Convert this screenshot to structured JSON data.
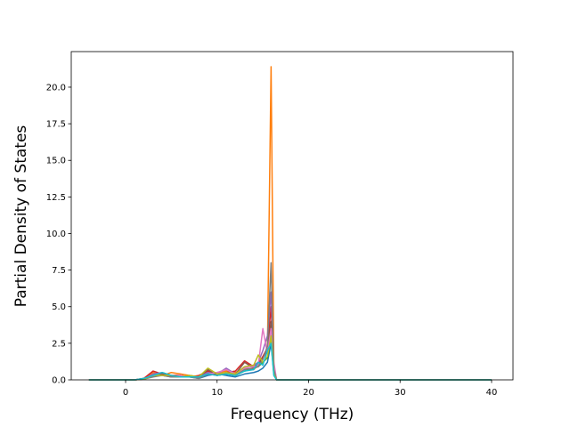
{
  "chart_data": {
    "type": "line",
    "xlabel": "Frequency (THz)",
    "ylabel": "Partial Density of States",
    "x": [
      -4,
      1,
      2,
      3,
      4,
      5,
      6,
      7,
      8,
      9,
      10,
      11,
      12,
      13,
      14,
      14.5,
      15,
      15.5,
      15.9,
      16.2,
      16.5,
      40
    ],
    "series": [
      {
        "color": "#1f77b4",
        "values": [
          0,
          0,
          0.1,
          0.4,
          0.3,
          0.2,
          0.3,
          0.2,
          0.1,
          0.3,
          0.4,
          0.3,
          0.2,
          0.4,
          0.5,
          0.6,
          0.8,
          1.2,
          2.5,
          0.5,
          0,
          0
        ]
      },
      {
        "color": "#ff7f0e",
        "values": [
          0,
          0,
          0.1,
          0.5,
          0.3,
          0.5,
          0.4,
          0.3,
          0.2,
          0.4,
          0.5,
          0.6,
          0.5,
          0.8,
          0.7,
          1,
          1.5,
          2,
          21.4,
          1,
          0,
          0
        ]
      },
      {
        "color": "#2ca02c",
        "values": [
          0,
          0,
          0.05,
          0.3,
          0.4,
          0.2,
          0.2,
          0.3,
          0.2,
          0.5,
          0.3,
          0.4,
          0.3,
          0.6,
          0.8,
          0.9,
          1.2,
          1.5,
          3,
          0.4,
          0,
          0
        ]
      },
      {
        "color": "#d62728",
        "values": [
          0,
          0,
          0.1,
          0.6,
          0.4,
          0.3,
          0.3,
          0.2,
          0.3,
          0.6,
          0.4,
          0.5,
          0.6,
          1.3,
          0.9,
          1.1,
          1.6,
          2.2,
          5,
          0.6,
          0,
          0
        ]
      },
      {
        "color": "#9467bd",
        "values": [
          0,
          0,
          0.05,
          0.4,
          0.5,
          0.3,
          0.2,
          0.2,
          0.2,
          0.5,
          0.4,
          0.8,
          0.4,
          0.9,
          1,
          1.2,
          2,
          3,
          6,
          0.8,
          0,
          0
        ]
      },
      {
        "color": "#8c564b",
        "values": [
          0,
          0,
          0.05,
          0.3,
          0.4,
          0.2,
          0.3,
          0.2,
          0.2,
          0.7,
          0.3,
          0.5,
          0.4,
          1.2,
          0.8,
          1,
          1.5,
          2,
          4,
          0.5,
          0,
          0
        ]
      },
      {
        "color": "#e377c2",
        "values": [
          0,
          0,
          0.05,
          0.3,
          0.3,
          0.2,
          0.3,
          0.2,
          0.2,
          0.4,
          0.5,
          0.7,
          0.4,
          0.8,
          0.9,
          1,
          3.5,
          1.8,
          3.5,
          1.2,
          0,
          0
        ]
      },
      {
        "color": "#7f7f7f",
        "values": [
          0,
          0,
          0.05,
          0.2,
          0.3,
          0.2,
          0.2,
          0.2,
          0.1,
          0.4,
          0.3,
          0.4,
          0.3,
          0.7,
          0.8,
          0.9,
          1.4,
          2.3,
          8,
          0.7,
          0,
          0
        ]
      },
      {
        "color": "#bcbd22",
        "values": [
          0,
          0,
          0.05,
          0.3,
          0.3,
          0.3,
          0.2,
          0.3,
          0.2,
          0.8,
          0.4,
          0.5,
          0.4,
          0.9,
          1,
          1.7,
          1.2,
          1.6,
          3,
          0.4,
          0,
          0
        ]
      },
      {
        "color": "#17becf",
        "values": [
          0,
          0,
          0.1,
          0.3,
          0.5,
          0.3,
          0.2,
          0.2,
          0.2,
          0.4,
          0.3,
          0.4,
          0.3,
          0.6,
          0.7,
          1.2,
          1,
          2,
          2.5,
          0.3,
          0,
          0
        ]
      }
    ],
    "xlim": [
      -5.94,
      42.34
    ],
    "xticks": [
      0,
      10,
      20,
      30,
      40
    ],
    "ylim": [
      0,
      22.43
    ],
    "yticks": [
      {
        "value": 0,
        "label": "0.0"
      },
      2.5,
      {
        "value": 5,
        "label": "5.0"
      },
      7.5,
      {
        "value": 10,
        "label": "10.0"
      },
      12.5,
      {
        "value": 15,
        "label": "15.0"
      },
      17.5,
      {
        "value": 20,
        "label": "20.0"
      }
    ],
    "grid": false
  }
}
